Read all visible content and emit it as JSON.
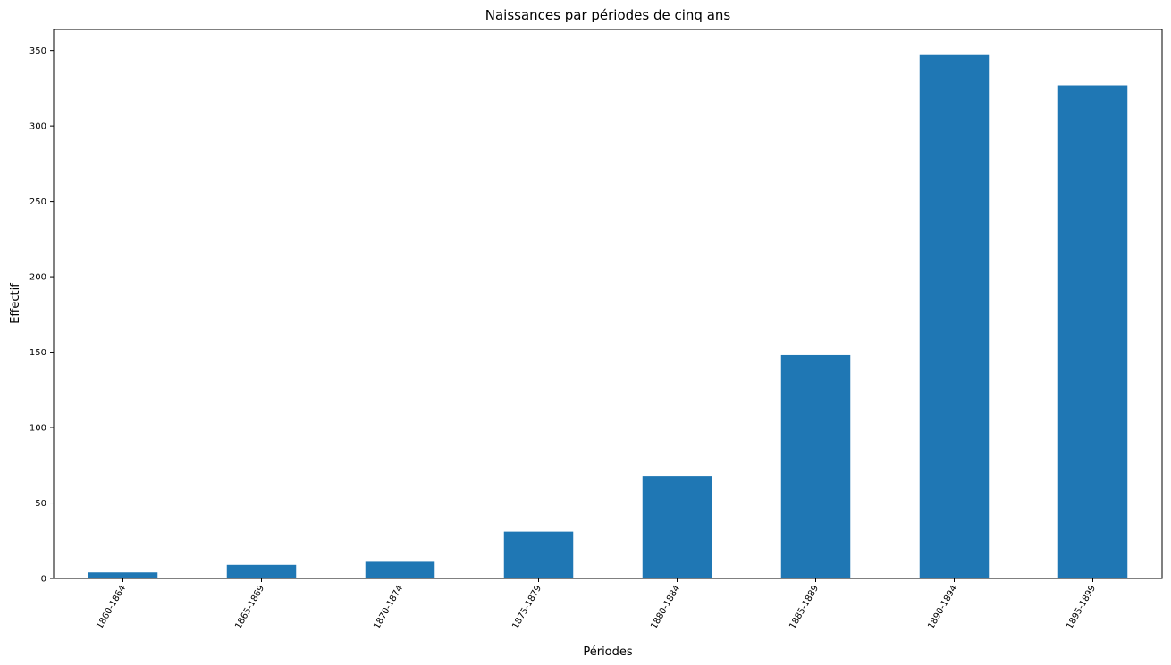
{
  "chart_data": {
    "type": "bar",
    "title": "Naissances par périodes de cinq ans",
    "xlabel": "Périodes",
    "ylabel": "Effectif",
    "categories": [
      "1860-1864",
      "1865-1869",
      "1870-1874",
      "1875-1879",
      "1880-1884",
      "1885-1889",
      "1890-1894",
      "1895-1899"
    ],
    "values": [
      4,
      9,
      11,
      31,
      68,
      148,
      347,
      327
    ],
    "ylim": [
      0,
      364
    ],
    "yticks": [
      0,
      50,
      100,
      150,
      200,
      250,
      300,
      350
    ],
    "grid": false,
    "bar_color": "#1f77b4"
  }
}
